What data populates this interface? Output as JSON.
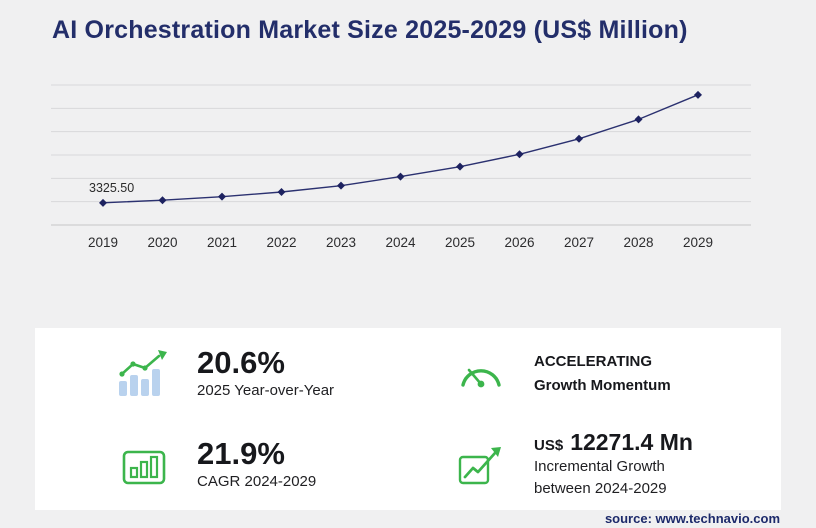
{
  "title": "AI Orchestration Market Size 2025-2029 (US$ Million)",
  "source": "source: www.technavio.com",
  "colors": {
    "navy": "#232e6a",
    "line": "#2b3170",
    "marker": "#1d2260",
    "grid": "#d8d8da",
    "axis": "#c6c6c8",
    "green": "#3cb54c",
    "bar_blue": "#b9d2ee",
    "card_bg": "#ffffff",
    "page_bg": "#f0f0f1",
    "text_dark": "#17181c"
  },
  "chart_data": {
    "type": "line",
    "title": "AI Orchestration Market Size 2025-2029 (US$ Million)",
    "x": [
      2019,
      2020,
      2021,
      2022,
      2023,
      2024,
      2025,
      2026,
      2027,
      2028,
      2029
    ],
    "values": [
      3325.5,
      3720,
      4250,
      4950,
      5900,
      7253.7,
      8748,
      10611,
      12935,
      15845,
      19525.1
    ],
    "first_point_label": "3325.50",
    "ylim": [
      0,
      21000
    ],
    "grid": "horizontal",
    "legend": "none",
    "ylabel": "",
    "xlabel": ""
  },
  "icons": {
    "yoy": "growth-bars-icon",
    "momentum": "speedometer-icon",
    "cagr": "bar-chart-box-icon",
    "incremental": "growth-arrow-icon"
  },
  "stats": {
    "yoy": {
      "value": "20.6%",
      "label": "2025 Year-over-Year"
    },
    "momentum": {
      "line1": "ACCELERATING",
      "line2": "Growth Momentum"
    },
    "cagr": {
      "value": "21.9%",
      "label": "CAGR 2024-2029"
    },
    "incremental": {
      "currency": "US$",
      "value": "12271.4 Mn",
      "line1": "Incremental Growth",
      "line2": "between 2024-2029"
    }
  }
}
